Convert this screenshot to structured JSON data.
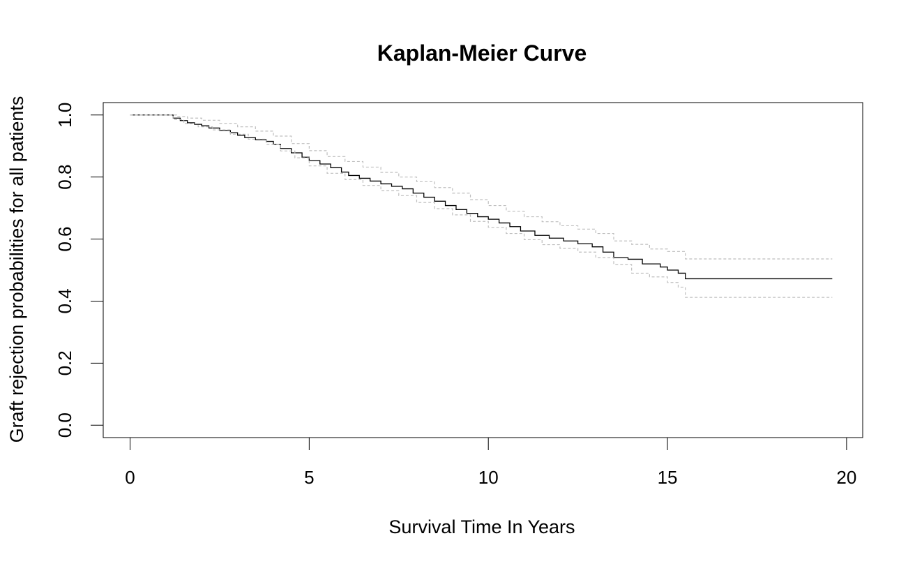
{
  "chart_data": {
    "type": "line",
    "title": "Kaplan-Meier Curve",
    "xlabel": "Survival Time In Years",
    "ylabel": "Graft rejection probabilities for all patients",
    "xlim": [
      -0.75,
      20.45
    ],
    "ylim": [
      -0.04,
      1.04
    ],
    "x_ticks": [
      0,
      5,
      10,
      15,
      20
    ],
    "y_ticks": [
      0.0,
      0.2,
      0.4,
      0.6,
      0.8,
      1.0
    ],
    "x_tick_labels": [
      "0",
      "5",
      "10",
      "15",
      "20"
    ],
    "y_tick_labels": [
      "0.0",
      "0.2",
      "0.4",
      "0.6",
      "0.8",
      "1.0"
    ],
    "grid": false,
    "legend": "none",
    "colors": {
      "estimate": "#000000",
      "ci": "#bebebe"
    },
    "series": [
      {
        "role": "estimate",
        "style": "solid-step",
        "x": [
          0,
          1.2,
          1.4,
          1.6,
          1.8,
          2.0,
          2.2,
          2.5,
          2.8,
          3.0,
          3.2,
          3.5,
          3.8,
          4.0,
          4.2,
          4.5,
          4.8,
          5.0,
          5.3,
          5.6,
          5.9,
          6.1,
          6.4,
          6.7,
          7.0,
          7.3,
          7.6,
          7.9,
          8.2,
          8.5,
          8.8,
          9.1,
          9.4,
          9.7,
          10.0,
          10.3,
          10.6,
          10.9,
          11.3,
          11.7,
          12.1,
          12.5,
          12.9,
          13.2,
          13.5,
          13.9,
          14.3,
          14.8,
          15.0,
          15.3,
          15.5,
          19.6
        ],
        "y": [
          1.0,
          0.99,
          0.982,
          0.975,
          0.97,
          0.965,
          0.958,
          0.95,
          0.943,
          0.935,
          0.927,
          0.92,
          0.915,
          0.905,
          0.892,
          0.878,
          0.864,
          0.853,
          0.842,
          0.83,
          0.816,
          0.805,
          0.796,
          0.787,
          0.778,
          0.77,
          0.762,
          0.748,
          0.735,
          0.722,
          0.708,
          0.695,
          0.683,
          0.672,
          0.664,
          0.652,
          0.64,
          0.626,
          0.612,
          0.603,
          0.594,
          0.585,
          0.575,
          0.558,
          0.54,
          0.535,
          0.52,
          0.51,
          0.5,
          0.49,
          0.472,
          0.472
        ]
      },
      {
        "role": "upper-ci",
        "style": "dashed-step",
        "x": [
          0,
          1.3,
          1.6,
          2.0,
          2.5,
          3.0,
          3.5,
          4.0,
          4.5,
          5.0,
          5.5,
          6.0,
          6.5,
          7.0,
          7.5,
          8.0,
          8.5,
          9.0,
          9.5,
          10.0,
          10.5,
          11.0,
          11.5,
          12.0,
          12.5,
          13.0,
          13.5,
          14.0,
          14.5,
          15.0,
          15.5,
          19.6
        ],
        "y": [
          1.0,
          0.995,
          0.99,
          0.983,
          0.973,
          0.962,
          0.948,
          0.932,
          0.908,
          0.885,
          0.866,
          0.85,
          0.832,
          0.815,
          0.8,
          0.785,
          0.766,
          0.748,
          0.727,
          0.708,
          0.69,
          0.672,
          0.656,
          0.643,
          0.632,
          0.618,
          0.594,
          0.583,
          0.568,
          0.56,
          0.536,
          0.536
        ]
      },
      {
        "role": "lower-ci",
        "style": "dashed-step",
        "x": [
          0,
          1.2,
          1.5,
          1.9,
          2.3,
          2.8,
          3.3,
          3.8,
          4.2,
          4.6,
          5.0,
          5.5,
          6.0,
          6.5,
          7.0,
          7.5,
          8.0,
          8.5,
          9.0,
          9.5,
          10.0,
          10.5,
          11.0,
          11.5,
          12.0,
          12.5,
          13.0,
          13.5,
          14.0,
          14.5,
          15.0,
          15.3,
          15.5,
          19.6
        ],
        "y": [
          1.0,
          0.985,
          0.972,
          0.962,
          0.952,
          0.938,
          0.922,
          0.905,
          0.884,
          0.862,
          0.836,
          0.812,
          0.792,
          0.773,
          0.756,
          0.74,
          0.718,
          0.698,
          0.678,
          0.657,
          0.638,
          0.618,
          0.598,
          0.582,
          0.57,
          0.558,
          0.54,
          0.518,
          0.49,
          0.478,
          0.46,
          0.445,
          0.412,
          0.412
        ]
      }
    ]
  }
}
